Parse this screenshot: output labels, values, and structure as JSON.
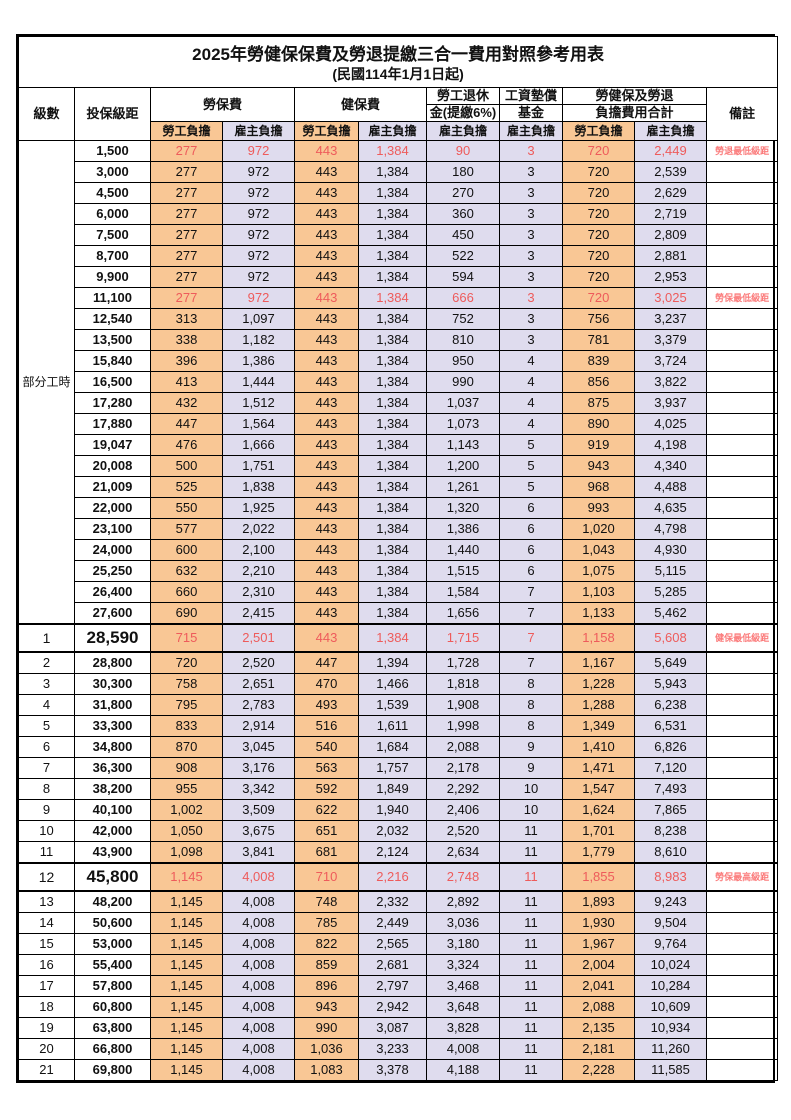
{
  "title": "2025年勞健保保費及勞退提繳三合一費用對照參考用表",
  "subtitle": "(民國114年1月1日起)",
  "colors": {
    "employee_column_bg": "#F9C795",
    "employer_column_bg": "#DFDCEE",
    "highlight_number_red": "#EE5B5B",
    "remark_red": "#FB7B7B",
    "grid_border": "#000000"
  },
  "header": {
    "level": "級數",
    "bracket": "投保級距",
    "labor_insurance": "勞保費",
    "health_insurance": "健保費",
    "pension_line1": "勞工退休",
    "pension_line2": "金(提繳6%)",
    "wage_fund_line1": "工資墊償",
    "wage_fund_line2": "基金",
    "total_line1": "勞健保及勞退",
    "total_line2": "負擔費用合計",
    "remark": "備註",
    "employee": "勞工負擔",
    "employer": "雇主負擔"
  },
  "part_time_label": "部分工時",
  "part_time_rowspan": 23,
  "rows": [
    {
      "level": "",
      "bracket": "1,500",
      "li_emp": "277",
      "li_er": "972",
      "hi_emp": "443",
      "hi_er": "1,384",
      "pension": "90",
      "fund": "3",
      "tot_emp": "720",
      "tot_er": "2,449",
      "remark": "勞退最低級距",
      "hl": true,
      "big": false
    },
    {
      "level": "",
      "bracket": "3,000",
      "li_emp": "277",
      "li_er": "972",
      "hi_emp": "443",
      "hi_er": "1,384",
      "pension": "180",
      "fund": "3",
      "tot_emp": "720",
      "tot_er": "2,539",
      "remark": "",
      "hl": false,
      "big": false
    },
    {
      "level": "",
      "bracket": "4,500",
      "li_emp": "277",
      "li_er": "972",
      "hi_emp": "443",
      "hi_er": "1,384",
      "pension": "270",
      "fund": "3",
      "tot_emp": "720",
      "tot_er": "2,629",
      "remark": "",
      "hl": false,
      "big": false
    },
    {
      "level": "",
      "bracket": "6,000",
      "li_emp": "277",
      "li_er": "972",
      "hi_emp": "443",
      "hi_er": "1,384",
      "pension": "360",
      "fund": "3",
      "tot_emp": "720",
      "tot_er": "2,719",
      "remark": "",
      "hl": false,
      "big": false
    },
    {
      "level": "",
      "bracket": "7,500",
      "li_emp": "277",
      "li_er": "972",
      "hi_emp": "443",
      "hi_er": "1,384",
      "pension": "450",
      "fund": "3",
      "tot_emp": "720",
      "tot_er": "2,809",
      "remark": "",
      "hl": false,
      "big": false
    },
    {
      "level": "",
      "bracket": "8,700",
      "li_emp": "277",
      "li_er": "972",
      "hi_emp": "443",
      "hi_er": "1,384",
      "pension": "522",
      "fund": "3",
      "tot_emp": "720",
      "tot_er": "2,881",
      "remark": "",
      "hl": false,
      "big": false
    },
    {
      "level": "",
      "bracket": "9,900",
      "li_emp": "277",
      "li_er": "972",
      "hi_emp": "443",
      "hi_er": "1,384",
      "pension": "594",
      "fund": "3",
      "tot_emp": "720",
      "tot_er": "2,953",
      "remark": "",
      "hl": false,
      "big": false
    },
    {
      "level": "",
      "bracket": "11,100",
      "li_emp": "277",
      "li_er": "972",
      "hi_emp": "443",
      "hi_er": "1,384",
      "pension": "666",
      "fund": "3",
      "tot_emp": "720",
      "tot_er": "3,025",
      "remark": "勞保最低級距",
      "hl": true,
      "big": false
    },
    {
      "level": "",
      "bracket": "12,540",
      "li_emp": "313",
      "li_er": "1,097",
      "hi_emp": "443",
      "hi_er": "1,384",
      "pension": "752",
      "fund": "3",
      "tot_emp": "756",
      "tot_er": "3,237",
      "remark": "",
      "hl": false,
      "big": false
    },
    {
      "level": "",
      "bracket": "13,500",
      "li_emp": "338",
      "li_er": "1,182",
      "hi_emp": "443",
      "hi_er": "1,384",
      "pension": "810",
      "fund": "3",
      "tot_emp": "781",
      "tot_er": "3,379",
      "remark": "",
      "hl": false,
      "big": false
    },
    {
      "level": "",
      "bracket": "15,840",
      "li_emp": "396",
      "li_er": "1,386",
      "hi_emp": "443",
      "hi_er": "1,384",
      "pension": "950",
      "fund": "4",
      "tot_emp": "839",
      "tot_er": "3,724",
      "remark": "",
      "hl": false,
      "big": false
    },
    {
      "level": "",
      "bracket": "16,500",
      "li_emp": "413",
      "li_er": "1,444",
      "hi_emp": "443",
      "hi_er": "1,384",
      "pension": "990",
      "fund": "4",
      "tot_emp": "856",
      "tot_er": "3,822",
      "remark": "",
      "hl": false,
      "big": false
    },
    {
      "level": "",
      "bracket": "17,280",
      "li_emp": "432",
      "li_er": "1,512",
      "hi_emp": "443",
      "hi_er": "1,384",
      "pension": "1,037",
      "fund": "4",
      "tot_emp": "875",
      "tot_er": "3,937",
      "remark": "",
      "hl": false,
      "big": false
    },
    {
      "level": "",
      "bracket": "17,880",
      "li_emp": "447",
      "li_er": "1,564",
      "hi_emp": "443",
      "hi_er": "1,384",
      "pension": "1,073",
      "fund": "4",
      "tot_emp": "890",
      "tot_er": "4,025",
      "remark": "",
      "hl": false,
      "big": false
    },
    {
      "level": "",
      "bracket": "19,047",
      "li_emp": "476",
      "li_er": "1,666",
      "hi_emp": "443",
      "hi_er": "1,384",
      "pension": "1,143",
      "fund": "5",
      "tot_emp": "919",
      "tot_er": "4,198",
      "remark": "",
      "hl": false,
      "big": false
    },
    {
      "level": "",
      "bracket": "20,008",
      "li_emp": "500",
      "li_er": "1,751",
      "hi_emp": "443",
      "hi_er": "1,384",
      "pension": "1,200",
      "fund": "5",
      "tot_emp": "943",
      "tot_er": "4,340",
      "remark": "",
      "hl": false,
      "big": false
    },
    {
      "level": "",
      "bracket": "21,009",
      "li_emp": "525",
      "li_er": "1,838",
      "hi_emp": "443",
      "hi_er": "1,384",
      "pension": "1,261",
      "fund": "5",
      "tot_emp": "968",
      "tot_er": "4,488",
      "remark": "",
      "hl": false,
      "big": false
    },
    {
      "level": "",
      "bracket": "22,000",
      "li_emp": "550",
      "li_er": "1,925",
      "hi_emp": "443",
      "hi_er": "1,384",
      "pension": "1,320",
      "fund": "6",
      "tot_emp": "993",
      "tot_er": "4,635",
      "remark": "",
      "hl": false,
      "big": false
    },
    {
      "level": "",
      "bracket": "23,100",
      "li_emp": "577",
      "li_er": "2,022",
      "hi_emp": "443",
      "hi_er": "1,384",
      "pension": "1,386",
      "fund": "6",
      "tot_emp": "1,020",
      "tot_er": "4,798",
      "remark": "",
      "hl": false,
      "big": false
    },
    {
      "level": "",
      "bracket": "24,000",
      "li_emp": "600",
      "li_er": "2,100",
      "hi_emp": "443",
      "hi_er": "1,384",
      "pension": "1,440",
      "fund": "6",
      "tot_emp": "1,043",
      "tot_er": "4,930",
      "remark": "",
      "hl": false,
      "big": false
    },
    {
      "level": "",
      "bracket": "25,250",
      "li_emp": "632",
      "li_er": "2,210",
      "hi_emp": "443",
      "hi_er": "1,384",
      "pension": "1,515",
      "fund": "6",
      "tot_emp": "1,075",
      "tot_er": "5,115",
      "remark": "",
      "hl": false,
      "big": false
    },
    {
      "level": "",
      "bracket": "26,400",
      "li_emp": "660",
      "li_er": "2,310",
      "hi_emp": "443",
      "hi_er": "1,384",
      "pension": "1,584",
      "fund": "7",
      "tot_emp": "1,103",
      "tot_er": "5,285",
      "remark": "",
      "hl": false,
      "big": false
    },
    {
      "level": "",
      "bracket": "27,600",
      "li_emp": "690",
      "li_er": "2,415",
      "hi_emp": "443",
      "hi_er": "1,384",
      "pension": "1,656",
      "fund": "7",
      "tot_emp": "1,133",
      "tot_er": "5,462",
      "remark": "",
      "hl": false,
      "big": false
    },
    {
      "level": "1",
      "bracket": "28,590",
      "li_emp": "715",
      "li_er": "2,501",
      "hi_emp": "443",
      "hi_er": "1,384",
      "pension": "1,715",
      "fund": "7",
      "tot_emp": "1,158",
      "tot_er": "5,608",
      "remark": "健保最低級距",
      "hl": true,
      "big": true
    },
    {
      "level": "2",
      "bracket": "28,800",
      "li_emp": "720",
      "li_er": "2,520",
      "hi_emp": "447",
      "hi_er": "1,394",
      "pension": "1,728",
      "fund": "7",
      "tot_emp": "1,167",
      "tot_er": "5,649",
      "remark": "",
      "hl": false,
      "big": false
    },
    {
      "level": "3",
      "bracket": "30,300",
      "li_emp": "758",
      "li_er": "2,651",
      "hi_emp": "470",
      "hi_er": "1,466",
      "pension": "1,818",
      "fund": "8",
      "tot_emp": "1,228",
      "tot_er": "5,943",
      "remark": "",
      "hl": false,
      "big": false
    },
    {
      "level": "4",
      "bracket": "31,800",
      "li_emp": "795",
      "li_er": "2,783",
      "hi_emp": "493",
      "hi_er": "1,539",
      "pension": "1,908",
      "fund": "8",
      "tot_emp": "1,288",
      "tot_er": "6,238",
      "remark": "",
      "hl": false,
      "big": false
    },
    {
      "level": "5",
      "bracket": "33,300",
      "li_emp": "833",
      "li_er": "2,914",
      "hi_emp": "516",
      "hi_er": "1,611",
      "pension": "1,998",
      "fund": "8",
      "tot_emp": "1,349",
      "tot_er": "6,531",
      "remark": "",
      "hl": false,
      "big": false
    },
    {
      "level": "6",
      "bracket": "34,800",
      "li_emp": "870",
      "li_er": "3,045",
      "hi_emp": "540",
      "hi_er": "1,684",
      "pension": "2,088",
      "fund": "9",
      "tot_emp": "1,410",
      "tot_er": "6,826",
      "remark": "",
      "hl": false,
      "big": false
    },
    {
      "level": "7",
      "bracket": "36,300",
      "li_emp": "908",
      "li_er": "3,176",
      "hi_emp": "563",
      "hi_er": "1,757",
      "pension": "2,178",
      "fund": "9",
      "tot_emp": "1,471",
      "tot_er": "7,120",
      "remark": "",
      "hl": false,
      "big": false
    },
    {
      "level": "8",
      "bracket": "38,200",
      "li_emp": "955",
      "li_er": "3,342",
      "hi_emp": "592",
      "hi_er": "1,849",
      "pension": "2,292",
      "fund": "10",
      "tot_emp": "1,547",
      "tot_er": "7,493",
      "remark": "",
      "hl": false,
      "big": false
    },
    {
      "level": "9",
      "bracket": "40,100",
      "li_emp": "1,002",
      "li_er": "3,509",
      "hi_emp": "622",
      "hi_er": "1,940",
      "pension": "2,406",
      "fund": "10",
      "tot_emp": "1,624",
      "tot_er": "7,865",
      "remark": "",
      "hl": false,
      "big": false
    },
    {
      "level": "10",
      "bracket": "42,000",
      "li_emp": "1,050",
      "li_er": "3,675",
      "hi_emp": "651",
      "hi_er": "2,032",
      "pension": "2,520",
      "fund": "11",
      "tot_emp": "1,701",
      "tot_er": "8,238",
      "remark": "",
      "hl": false,
      "big": false
    },
    {
      "level": "11",
      "bracket": "43,900",
      "li_emp": "1,098",
      "li_er": "3,841",
      "hi_emp": "681",
      "hi_er": "2,124",
      "pension": "2,634",
      "fund": "11",
      "tot_emp": "1,779",
      "tot_er": "8,610",
      "remark": "",
      "hl": false,
      "big": false
    },
    {
      "level": "12",
      "bracket": "45,800",
      "li_emp": "1,145",
      "li_er": "4,008",
      "hi_emp": "710",
      "hi_er": "2,216",
      "pension": "2,748",
      "fund": "11",
      "tot_emp": "1,855",
      "tot_er": "8,983",
      "remark": "勞保最高級距",
      "hl": true,
      "big": true
    },
    {
      "level": "13",
      "bracket": "48,200",
      "li_emp": "1,145",
      "li_er": "4,008",
      "hi_emp": "748",
      "hi_er": "2,332",
      "pension": "2,892",
      "fund": "11",
      "tot_emp": "1,893",
      "tot_er": "9,243",
      "remark": "",
      "hl": false,
      "big": false
    },
    {
      "level": "14",
      "bracket": "50,600",
      "li_emp": "1,145",
      "li_er": "4,008",
      "hi_emp": "785",
      "hi_er": "2,449",
      "pension": "3,036",
      "fund": "11",
      "tot_emp": "1,930",
      "tot_er": "9,504",
      "remark": "",
      "hl": false,
      "big": false
    },
    {
      "level": "15",
      "bracket": "53,000",
      "li_emp": "1,145",
      "li_er": "4,008",
      "hi_emp": "822",
      "hi_er": "2,565",
      "pension": "3,180",
      "fund": "11",
      "tot_emp": "1,967",
      "tot_er": "9,764",
      "remark": "",
      "hl": false,
      "big": false
    },
    {
      "level": "16",
      "bracket": "55,400",
      "li_emp": "1,145",
      "li_er": "4,008",
      "hi_emp": "859",
      "hi_er": "2,681",
      "pension": "3,324",
      "fund": "11",
      "tot_emp": "2,004",
      "tot_er": "10,024",
      "remark": "",
      "hl": false,
      "big": false
    },
    {
      "level": "17",
      "bracket": "57,800",
      "li_emp": "1,145",
      "li_er": "4,008",
      "hi_emp": "896",
      "hi_er": "2,797",
      "pension": "3,468",
      "fund": "11",
      "tot_emp": "2,041",
      "tot_er": "10,284",
      "remark": "",
      "hl": false,
      "big": false
    },
    {
      "level": "18",
      "bracket": "60,800",
      "li_emp": "1,145",
      "li_er": "4,008",
      "hi_emp": "943",
      "hi_er": "2,942",
      "pension": "3,648",
      "fund": "11",
      "tot_emp": "2,088",
      "tot_er": "10,609",
      "remark": "",
      "hl": false,
      "big": false
    },
    {
      "level": "19",
      "bracket": "63,800",
      "li_emp": "1,145",
      "li_er": "4,008",
      "hi_emp": "990",
      "hi_er": "3,087",
      "pension": "3,828",
      "fund": "11",
      "tot_emp": "2,135",
      "tot_er": "10,934",
      "remark": "",
      "hl": false,
      "big": false
    },
    {
      "level": "20",
      "bracket": "66,800",
      "li_emp": "1,145",
      "li_er": "4,008",
      "hi_emp": "1,036",
      "hi_er": "3,233",
      "pension": "4,008",
      "fund": "11",
      "tot_emp": "2,181",
      "tot_er": "11,260",
      "remark": "",
      "hl": false,
      "big": false
    },
    {
      "level": "21",
      "bracket": "69,800",
      "li_emp": "1,145",
      "li_er": "4,008",
      "hi_emp": "1,083",
      "hi_er": "3,378",
      "pension": "4,188",
      "fund": "11",
      "tot_emp": "2,228",
      "tot_er": "11,585",
      "remark": "",
      "hl": false,
      "big": false
    }
  ]
}
